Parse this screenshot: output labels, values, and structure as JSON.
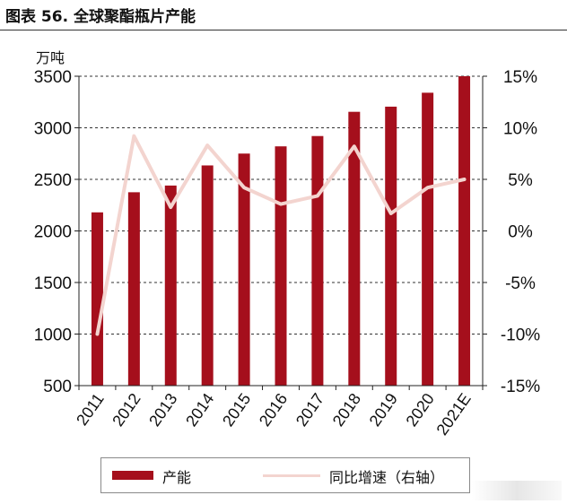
{
  "figure_title": "图表 56. 全球聚酯瓶片产能",
  "chart_data": {
    "type": "bar",
    "categories": [
      "2011",
      "2012",
      "2013",
      "2014",
      "2015",
      "2016",
      "2017",
      "2018",
      "2019",
      "2020",
      "2021E"
    ],
    "series": [
      {
        "name": "产能",
        "type": "bar",
        "axis": "left",
        "values": [
          2180,
          2375,
          2440,
          2635,
          2750,
          2820,
          2920,
          3155,
          3205,
          3340,
          3500
        ],
        "color": "#A50F1C"
      },
      {
        "name": "同比增速（右轴）",
        "type": "line",
        "axis": "right",
        "values": [
          -10.0,
          9.2,
          2.3,
          8.3,
          4.2,
          2.6,
          3.4,
          8.2,
          1.7,
          4.2,
          5.0
        ],
        "color": "#F3D4CF"
      }
    ],
    "y_left": {
      "label": "万吨",
      "ylim": [
        500,
        3500
      ],
      "ticks": [
        "500",
        "1000",
        "1500",
        "2000",
        "2500",
        "3000",
        "3500"
      ]
    },
    "y_right": {
      "ylim": [
        -15,
        15
      ],
      "ticks": [
        "-15%",
        "-10%",
        "-5%",
        "0%",
        "5%",
        "10%",
        "15%"
      ]
    },
    "grid": "horizontal dashed",
    "legend_position": "bottom"
  }
}
